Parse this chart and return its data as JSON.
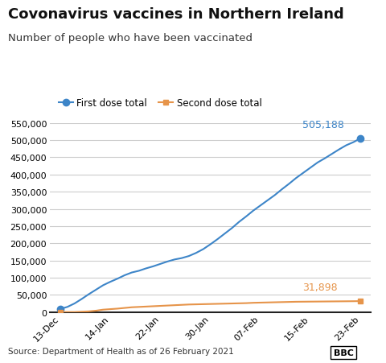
{
  "title": "Covonavirus vaccines in Northern Ireland",
  "subtitle": "Number of people who have been vaccinated",
  "source": "Source: Department of Health as of 26 February 2021",
  "x_labels": [
    "13-Dec",
    "14-Jan",
    "22-Jan",
    "30-Jan",
    "07-Feb",
    "15-Feb",
    "23-Feb"
  ],
  "first_dose": [
    9000,
    15000,
    25000,
    38000,
    52000,
    65000,
    78000,
    88000,
    97000,
    107000,
    115000,
    120000,
    127000,
    133000,
    140000,
    147000,
    153000,
    157000,
    163000,
    172000,
    183000,
    197000,
    212000,
    228000,
    244000,
    262000,
    278000,
    295000,
    310000,
    325000,
    340000,
    357000,
    373000,
    390000,
    405000,
    420000,
    435000,
    447000,
    460000,
    473000,
    485000,
    494000,
    505188
  ],
  "second_dose": [
    0,
    0,
    0,
    1000,
    2000,
    4000,
    7000,
    8500,
    10000,
    12000,
    14000,
    15000,
    16000,
    17000,
    18000,
    19000,
    20000,
    21000,
    22000,
    22500,
    23000,
    23500,
    24000,
    24500,
    25000,
    25500,
    26000,
    27000,
    27500,
    28000,
    28500,
    29000,
    29500,
    30000,
    30200,
    30400,
    30600,
    30800,
    31000,
    31200,
    31400,
    31600,
    31898
  ],
  "first_dose_label": "505,188",
  "second_dose_label": "31,898",
  "first_dose_color": "#3d85c8",
  "second_dose_color": "#e6944a",
  "first_dose_legend": "First dose total",
  "second_dose_legend": "Second dose total",
  "ylim": [
    0,
    550000
  ],
  "yticks": [
    0,
    50000,
    100000,
    150000,
    200000,
    250000,
    300000,
    350000,
    400000,
    450000,
    500000,
    550000
  ],
  "bg_color": "#ffffff",
  "plot_bg_color": "#ffffff",
  "grid_color": "#cccccc",
  "title_fontsize": 13,
  "subtitle_fontsize": 9.5,
  "tick_fontsize": 8,
  "annotation_fontsize": 9
}
